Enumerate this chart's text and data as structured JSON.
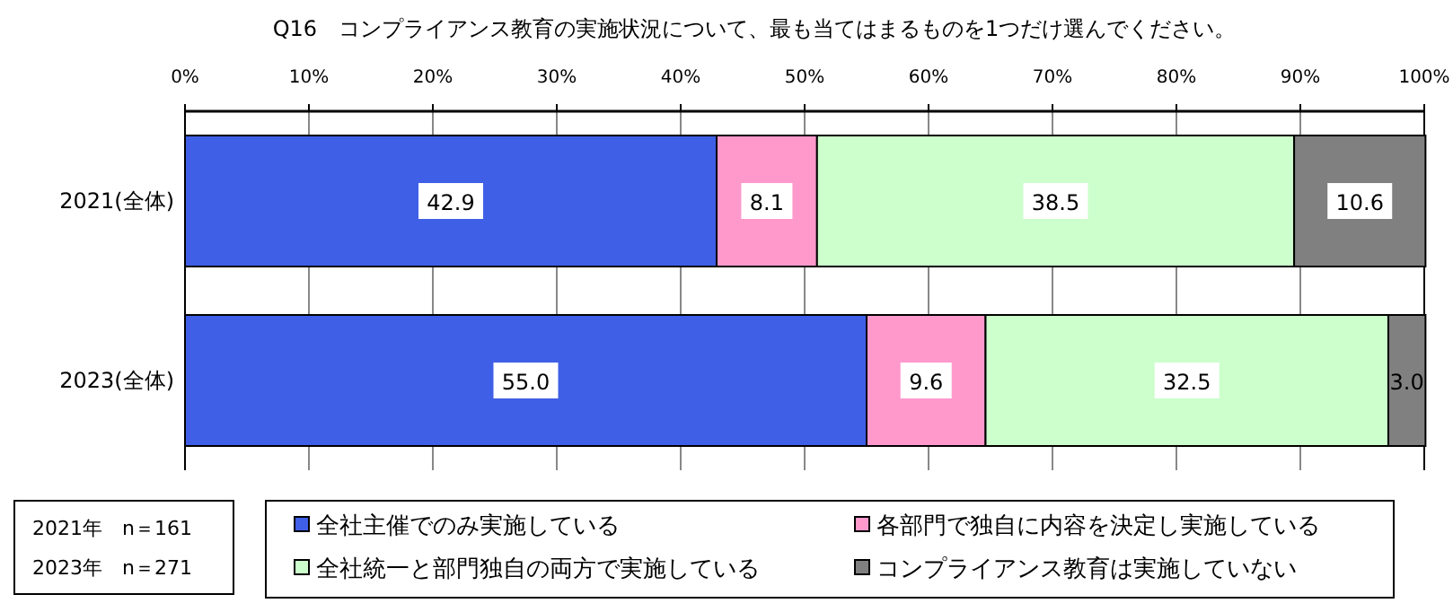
{
  "chart_data": {
    "type": "bar",
    "orientation": "horizontal",
    "stacked": true,
    "title": "Q16　コンプライアンス教育の実施状況について、最も当てはまるものを1つだけ選んでください。",
    "categories": [
      "2021(全体)",
      "2023(全体)"
    ],
    "series": [
      {
        "name": "全社主催でのみ実施している",
        "color": "#3f5fe6",
        "values": [
          42.9,
          55.0
        ]
      },
      {
        "name": "各部門で独自に内容を決定し実施している",
        "color": "#ff99cc",
        "values": [
          8.1,
          9.6
        ]
      },
      {
        "name": "全社統一と部門独自の両方で実施している",
        "color": "#ccffcc",
        "values": [
          38.5,
          32.5
        ]
      },
      {
        "name": "コンプライアンス教育は実施していない",
        "color": "#808080",
        "values": [
          10.6,
          3.0
        ]
      }
    ],
    "value_labels": [
      [
        "42.9",
        "55.0"
      ],
      [
        "8.1",
        "9.6"
      ],
      [
        "38.5",
        "32.5"
      ],
      [
        "10.6",
        "3.0"
      ]
    ],
    "xlim": [
      0,
      100
    ],
    "xticks": [
      {
        "value": 0,
        "label": "0%"
      },
      {
        "value": 10,
        "label": "10%"
      },
      {
        "value": 20,
        "label": "20%"
      },
      {
        "value": 30,
        "label": "30%"
      },
      {
        "value": 40,
        "label": "40%"
      },
      {
        "value": 50,
        "label": "50%"
      },
      {
        "value": 60,
        "label": "60%"
      },
      {
        "value": 70,
        "label": "70%"
      },
      {
        "value": 80,
        "label": "80%"
      },
      {
        "value": 90,
        "label": "90%"
      },
      {
        "value": 100,
        "label": "100%"
      }
    ],
    "grid": "x",
    "legend": "bottom",
    "annotations": [
      "2021年　n＝161",
      "2023年　n＝271"
    ]
  }
}
